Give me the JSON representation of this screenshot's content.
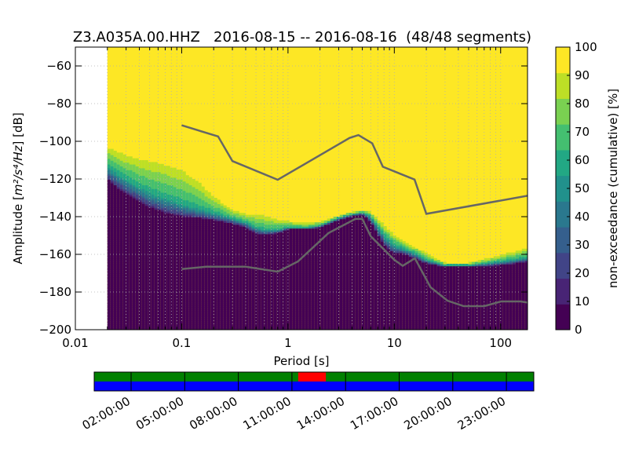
{
  "chart_data": {
    "type": "heatmap",
    "title": "Z3.A035A.00.HHZ   2016-08-15 -- 2016-08-16  (48/48 segments)",
    "xlabel": "Period [s]",
    "ylabel_prefix": "Amplitude [",
    "ylabel_units": "m²/s⁴/Hz",
    "ylabel_suffix": "] [dB]",
    "x_scale": "log",
    "xlim": [
      0.01,
      179
    ],
    "ylim": [
      -200,
      -50
    ],
    "x_ticks": [
      {
        "value": 0.01,
        "label": "0.01"
      },
      {
        "value": 0.1,
        "label": "0.1"
      },
      {
        "value": 1,
        "label": "1"
      },
      {
        "value": 10,
        "label": "10"
      },
      {
        "value": 100,
        "label": "100"
      }
    ],
    "y_ticks": [
      {
        "value": -60,
        "label": "−60"
      },
      {
        "value": -80,
        "label": "−80"
      },
      {
        "value": -100,
        "label": "−100"
      },
      {
        "value": -120,
        "label": "−120"
      },
      {
        "value": -140,
        "label": "−140"
      },
      {
        "value": -160,
        "label": "−160"
      },
      {
        "value": -180,
        "label": "−180"
      },
      {
        "value": -200,
        "label": "−200"
      }
    ],
    "grid": true,
    "data_period_min": 0.02,
    "colorbar": {
      "label": "non-exceedance (cumulative) [%]",
      "range": [
        0,
        100
      ],
      "ticks": [
        {
          "value": 0,
          "label": "0"
        },
        {
          "value": 10,
          "label": "10"
        },
        {
          "value": 20,
          "label": "20"
        },
        {
          "value": 30,
          "label": "30"
        },
        {
          "value": 40,
          "label": "40"
        },
        {
          "value": 50,
          "label": "50"
        },
        {
          "value": 60,
          "label": "60"
        },
        {
          "value": 70,
          "label": "70"
        },
        {
          "value": 80,
          "label": "80"
        },
        {
          "value": 90,
          "label": "90"
        },
        {
          "value": 100,
          "label": "100"
        }
      ],
      "colors": [
        "#440154",
        "#482475",
        "#414487",
        "#355f8d",
        "#2a788e",
        "#21918c",
        "#22a884",
        "#44bf70",
        "#7ad151",
        "#bddf26",
        "#fde725"
      ]
    },
    "psd_bands": {
      "period": [
        0.02,
        0.025,
        0.03,
        0.04,
        0.05,
        0.07,
        0.1,
        0.15,
        0.2,
        0.3,
        0.4,
        0.5,
        0.6,
        0.8,
        1,
        1.5,
        2,
        3,
        4,
        5,
        6,
        8,
        10,
        12,
        15,
        20,
        30,
        50,
        100,
        179
      ],
      "p_low": [
        -120,
        -125,
        -128,
        -132,
        -135,
        -138,
        -140,
        -141,
        -142,
        -144,
        -146,
        -149,
        -150,
        -149,
        -147,
        -147,
        -146,
        -142,
        -140,
        -139,
        -143,
        -155,
        -160,
        -160,
        -162,
        -165,
        -167,
        -167,
        -166,
        -164
      ],
      "p_mid": [
        -113,
        -117,
        -120,
        -124,
        -127,
        -130,
        -133,
        -136,
        -138,
        -141,
        -143,
        -146,
        -147,
        -147,
        -146,
        -146,
        -145,
        -141,
        -139,
        -138,
        -140,
        -150,
        -155,
        -157,
        -159,
        -163,
        -166,
        -166,
        -164,
        -162
      ],
      "p_top": [
        -104,
        -106,
        -108,
        -110,
        -111,
        -113,
        -116,
        -123,
        -130,
        -137,
        -139,
        -139,
        -140,
        -142,
        -143,
        -144,
        -143,
        -140,
        -138,
        -137,
        -138,
        -145,
        -150,
        -153,
        -156,
        -160,
        -165,
        -165,
        -161,
        -157
      ]
    },
    "series": [
      {
        "x": [
          0.1,
          0.22,
          0.3,
          0.8,
          3.8,
          4.6,
          6.2,
          7.8,
          15.5,
          20,
          179
        ],
        "y": [
          -91.5,
          -97.4,
          -110.5,
          -120.4,
          -98.2,
          -96.7,
          -101.1,
          -113.5,
          -120.3,
          -138.5,
          -128.9
        ],
        "color": "#666666"
      },
      {
        "x": [
          0.1,
          0.17,
          0.4,
          0.8,
          1.24,
          2.4,
          4.3,
          5,
          6,
          10,
          12,
          15.6,
          21.9,
          31.6,
          45,
          70,
          101,
          154,
          179
        ],
        "y": [
          -167.8,
          -166.6,
          -166.6,
          -169.2,
          -163.8,
          -148.7,
          -141.2,
          -141.2,
          -150.4,
          -162.9,
          -166.1,
          -162.1,
          -177.4,
          -184.6,
          -187.5,
          -187.5,
          -185,
          -185,
          -185.6
        ],
        "color": "#666666"
      }
    ]
  },
  "coverage": {
    "time_labels": [
      "02:00:00",
      "05:00:00",
      "08:00:00",
      "11:00:00",
      "14:00:00",
      "17:00:00",
      "20:00:00",
      "23:00:00"
    ],
    "data_color": "#008000",
    "gap_color": "#ff0000",
    "segments_color": "#0000ff",
    "gap_span": [
      0.464,
      0.527
    ]
  }
}
